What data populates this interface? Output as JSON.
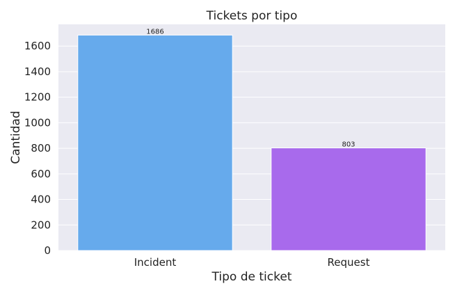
{
  "chart_data": {
    "type": "bar",
    "title": "Tickets por tipo",
    "xlabel": "Tipo de ticket",
    "ylabel": "Cantidad",
    "categories": [
      "Incident",
      "Request"
    ],
    "values": [
      1686,
      803
    ],
    "data_labels": [
      "1686",
      "803"
    ],
    "bar_colors": [
      "#66aaec",
      "#a86aec"
    ],
    "ylim": [
      0,
      1770
    ],
    "yticks": [
      0,
      200,
      400,
      600,
      800,
      1000,
      1200,
      1400,
      1600
    ],
    "grid": true,
    "plot_background": "#eaeaf2"
  }
}
